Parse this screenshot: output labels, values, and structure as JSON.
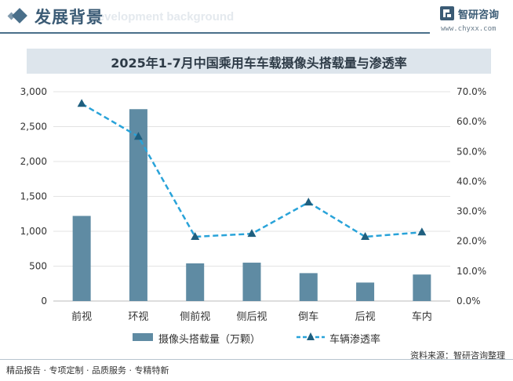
{
  "header": {
    "title": "发展背景",
    "subtitle": "Development background",
    "brand_name": "智研咨询",
    "brand_url": "www.chyxx.com"
  },
  "chart_data": {
    "type": "bar",
    "title": "2025年1-7月中国乘用车车载摄像头搭载量与渗透率",
    "categories": [
      "前视",
      "环视",
      "侧前视",
      "侧后视",
      "倒车",
      "后视",
      "车内"
    ],
    "series": [
      {
        "name": "摄像头搭载量（万颗）",
        "type": "bar",
        "axis": "left",
        "values": [
          1220,
          2750,
          540,
          550,
          400,
          265,
          380
        ]
      },
      {
        "name": "车辆渗透率",
        "type": "line",
        "axis": "right",
        "values": [
          66.0,
          55.0,
          21.5,
          22.5,
          33.0,
          21.5,
          23.0
        ]
      }
    ],
    "ylim_left": [
      0,
      3000
    ],
    "yticks_left": [
      "0",
      "500",
      "1,000",
      "1,500",
      "2,000",
      "2,500",
      "3,000"
    ],
    "ylim_right": [
      0,
      70
    ],
    "yticks_right": [
      "0.0%",
      "10.0%",
      "20.0%",
      "30.0%",
      "40.0%",
      "50.0%",
      "60.0%",
      "70.0%"
    ],
    "grid": true,
    "legend_position": "bottom",
    "colors": {
      "bar": "#5f8ba3",
      "line": "#29a3d9",
      "marker": "#1f5f7f"
    }
  },
  "footer": {
    "left_text": "精品报告 · 专项定制 · 品质服务 · 专精特新",
    "source": "资料来源：智研咨询整理"
  }
}
